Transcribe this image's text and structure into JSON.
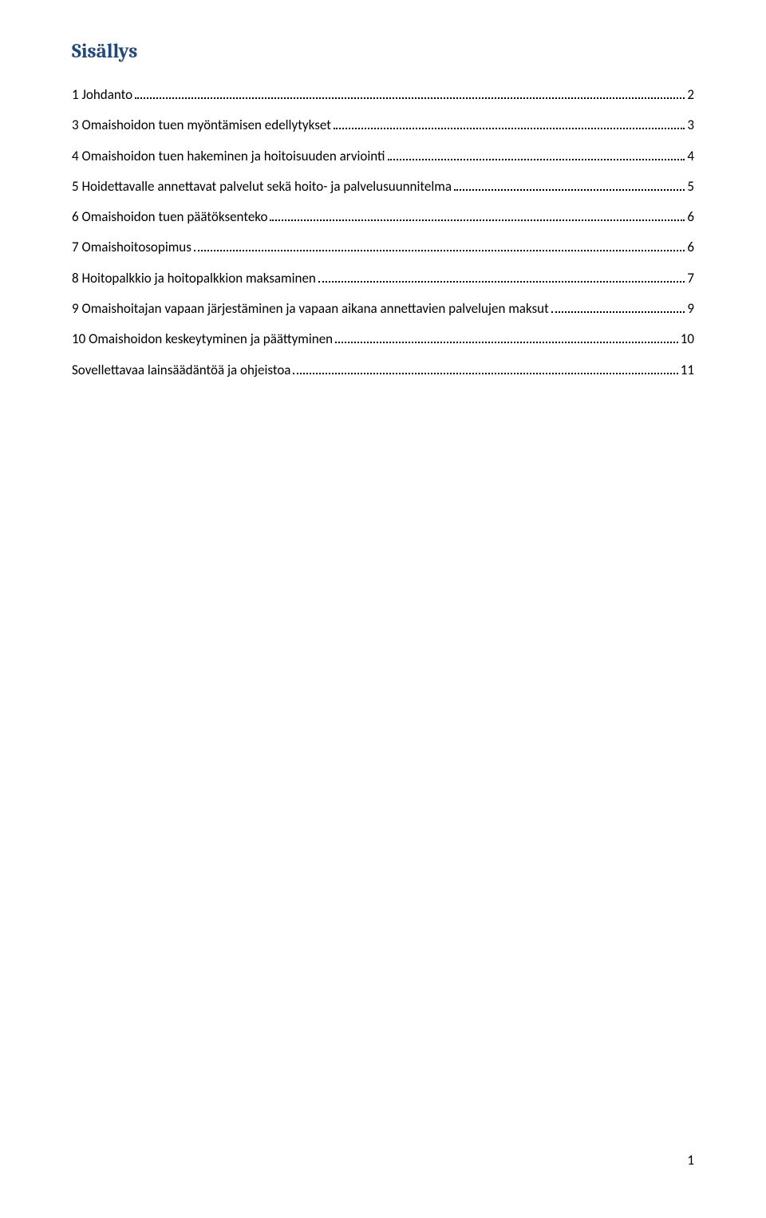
{
  "heading": "Sisällys",
  "toc": {
    "entries": [
      {
        "label": "1 Johdanto",
        "page": "2"
      },
      {
        "label": "3 Omaishoidon tuen myöntämisen edellytykset",
        "page": "3"
      },
      {
        "label": "4 Omaishoidon tuen hakeminen ja hoitoisuuden arviointi",
        "page": "4"
      },
      {
        "label": "5 Hoidettavalle annettavat palvelut sekä hoito- ja palvelusuunnitelma",
        "page": "5"
      },
      {
        "label": "6 Omaishoidon tuen päätöksenteko",
        "page": "6"
      },
      {
        "label": "7 Omaishoitosopimus",
        "page": "6"
      },
      {
        "label": "8 Hoitopalkkio ja hoitopalkkion maksaminen",
        "page": "7"
      },
      {
        "label": "9 Omaishoitajan vapaan järjestäminen ja vapaan aikana annettavien palvelujen maksut",
        "page": "9"
      },
      {
        "label": "10 Omaishoidon keskeytyminen ja päättyminen",
        "page": "10"
      },
      {
        "label": "Sovellettavaa lainsäädäntöä ja ohjeistoa",
        "page": "11"
      }
    ]
  },
  "page_number": "1"
}
